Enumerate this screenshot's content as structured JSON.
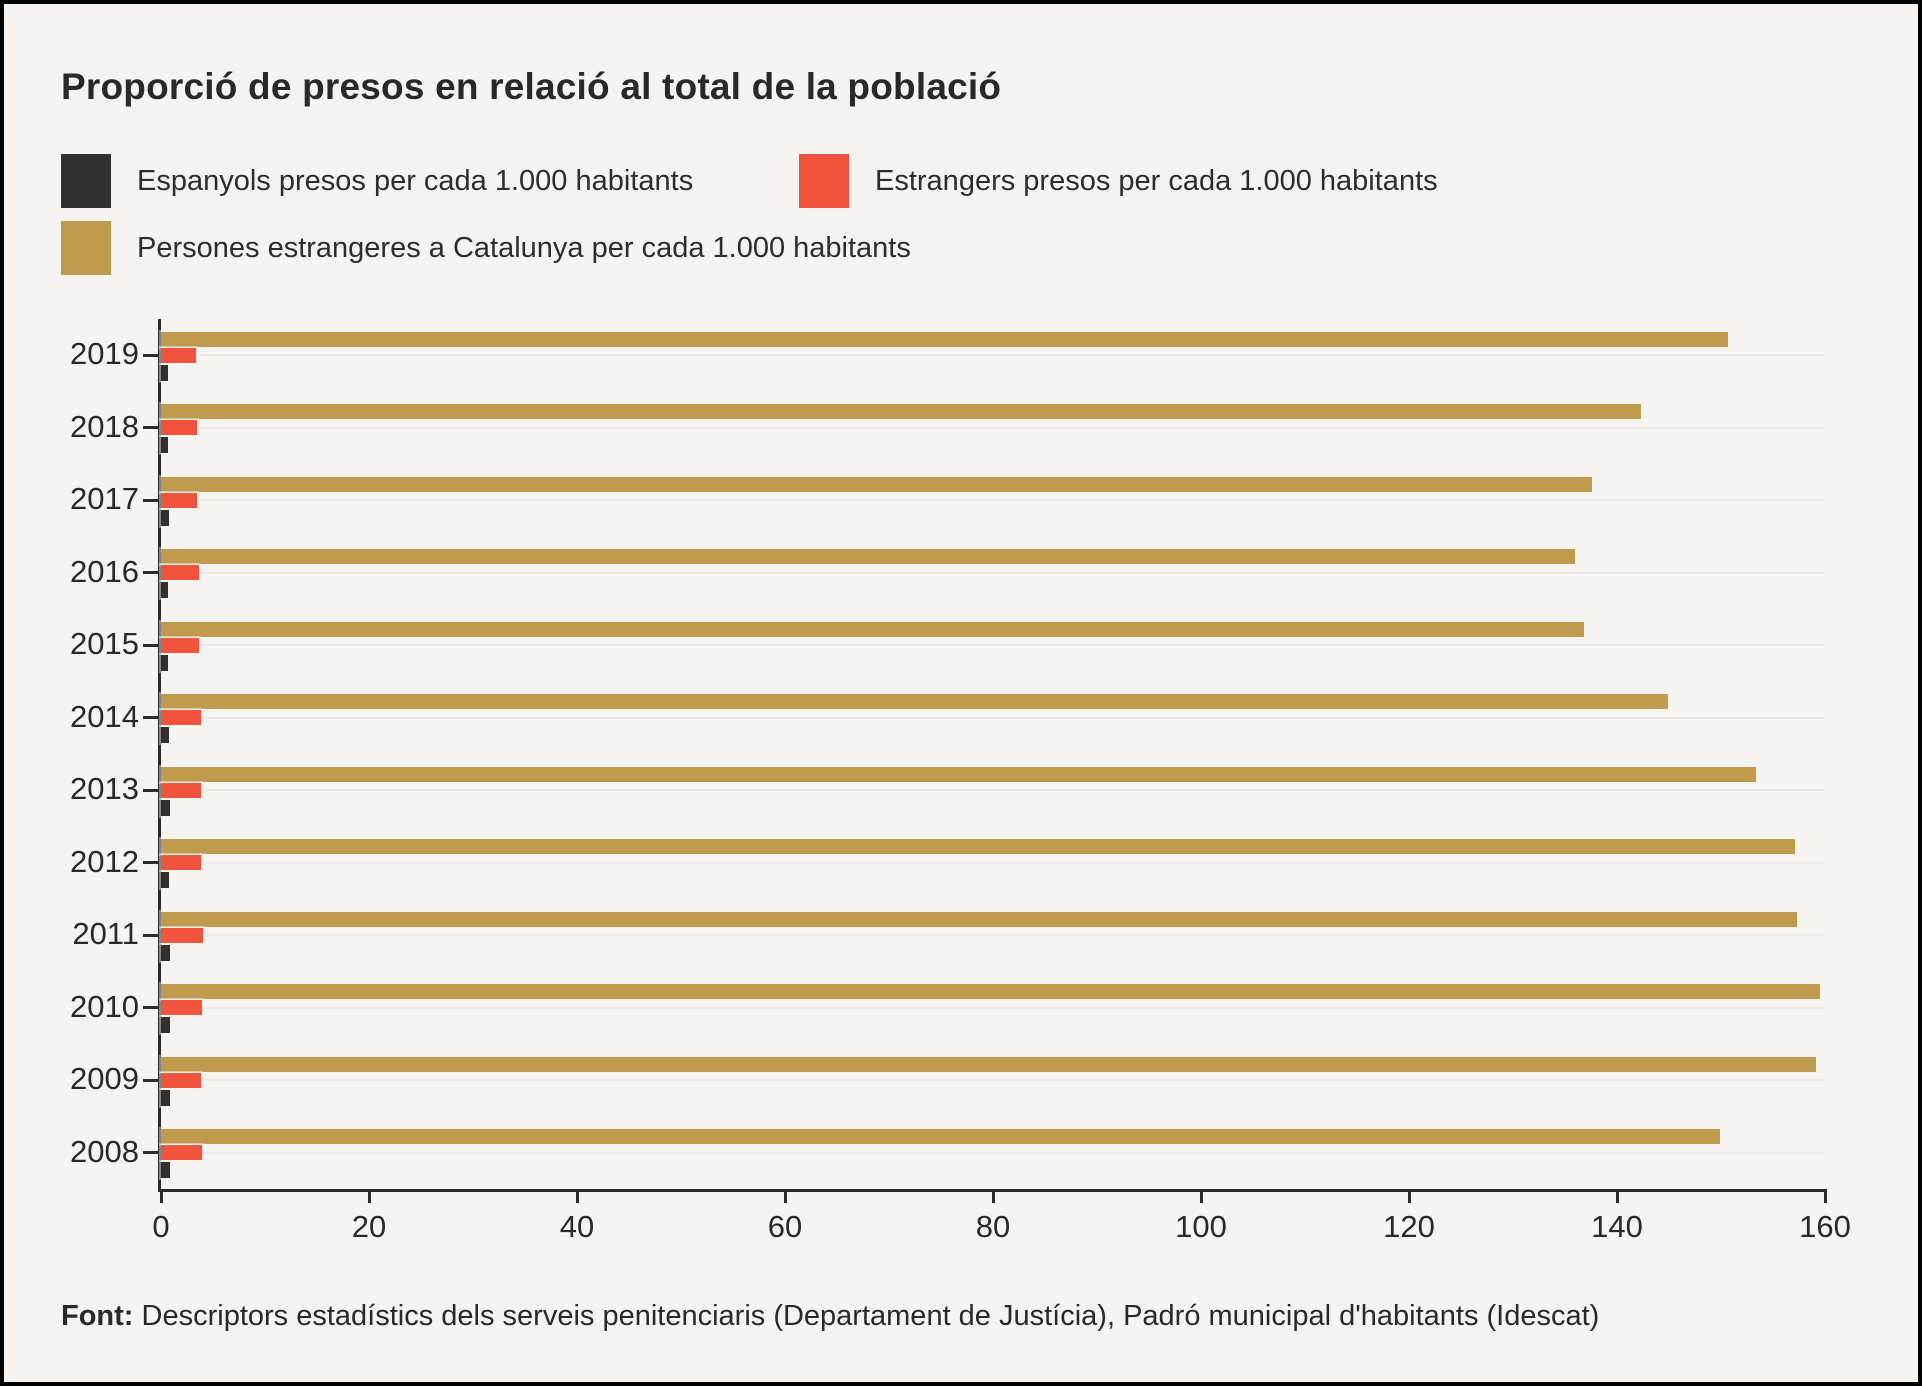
{
  "title": "Proporció de presos en relació al total de la població",
  "legend": [
    {
      "label": "Espanyols presos per cada 1.000 habitants",
      "color": "#34302d"
    },
    {
      "label": "Estrangers presos per cada 1.000 habitants",
      "color": "#f0543c"
    },
    {
      "label": "Persones estrangeres a Catalunya per cada 1.000 habitants",
      "color": "#c09b4d"
    }
  ],
  "source": {
    "label": "Font:",
    "text": " Descriptors estadístics dels serveis penitenciaris (Departament de Justícia), Padró municipal d'habitants (Idescat)"
  },
  "chart_data": {
    "type": "bar",
    "orientation": "horizontal",
    "title": "Proporció de presos en relació al total de la població",
    "categories": [
      "2019",
      "2018",
      "2017",
      "2016",
      "2015",
      "2014",
      "2013",
      "2012",
      "2011",
      "2010",
      "2009",
      "2008"
    ],
    "series": [
      {
        "name": "Espanyols presos per cada 1.000 habitants",
        "color": "#34302d",
        "values": [
          0.7,
          0.7,
          0.75,
          0.7,
          0.7,
          0.8,
          0.85,
          0.8,
          0.9,
          0.9,
          0.9,
          0.9
        ]
      },
      {
        "name": "Estrangers presos per cada 1.000 habitants",
        "color": "#f0543c",
        "values": [
          3.4,
          3.5,
          3.5,
          3.7,
          3.7,
          3.8,
          3.8,
          3.8,
          4.0,
          3.9,
          3.8,
          3.9
        ]
      },
      {
        "name": "Persones estrangeres a Catalunya per cada 1.000 habitants",
        "color": "#c09b4d",
        "values": [
          150.7,
          142.3,
          137.6,
          136.0,
          136.8,
          144.9,
          153.4,
          157.1,
          157.3,
          159.5,
          159.1,
          149.9
        ]
      }
    ],
    "xlim": [
      0,
      160
    ],
    "x_ticks": [
      0,
      20,
      40,
      60,
      80,
      100,
      120,
      140,
      160
    ],
    "xlabel": "",
    "ylabel": "",
    "legend_position": "top",
    "grid": "faint horizontal line at each category center"
  }
}
